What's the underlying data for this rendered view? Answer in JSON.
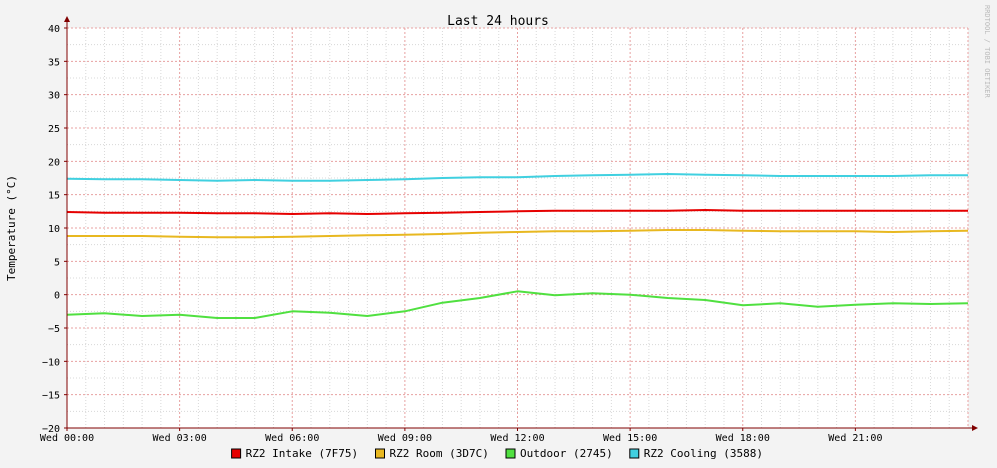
{
  "watermark": "RRDTOOL / TOBI OETIKER",
  "colors": {
    "background": "#f3f3f3",
    "plot_background": "#ffffff",
    "grid_major": "#e8a0a0",
    "grid_minor": "#d8d8d8",
    "axis": "#800000"
  },
  "chart_data": {
    "type": "line",
    "title": "Last 24 hours",
    "ylabel": "Temperature (°C)",
    "xlabel": "",
    "ylim": [
      -20,
      40
    ],
    "xlim": [
      0,
      24
    ],
    "grid": true,
    "legend_position": "bottom",
    "y_ticks": [
      -20,
      -15,
      -10,
      -5,
      0,
      5,
      10,
      15,
      20,
      25,
      30,
      35,
      40
    ],
    "x_ticks": [
      {
        "hour": 0,
        "label": "Wed 00:00"
      },
      {
        "hour": 3,
        "label": "Wed 03:00"
      },
      {
        "hour": 6,
        "label": "Wed 06:00"
      },
      {
        "hour": 9,
        "label": "Wed 09:00"
      },
      {
        "hour": 12,
        "label": "Wed 12:00"
      },
      {
        "hour": 15,
        "label": "Wed 15:00"
      },
      {
        "hour": 18,
        "label": "Wed 18:00"
      },
      {
        "hour": 21,
        "label": "Wed 21:00"
      }
    ],
    "x_hours": [
      0,
      1,
      2,
      3,
      4,
      5,
      6,
      7,
      8,
      9,
      10,
      11,
      12,
      13,
      14,
      15,
      16,
      17,
      18,
      19,
      20,
      21,
      22,
      23,
      24
    ],
    "series": [
      {
        "name": "RZ2 Intake (7F75)",
        "color": "#e60000",
        "values": [
          12.4,
          12.3,
          12.3,
          12.3,
          12.2,
          12.2,
          12.1,
          12.2,
          12.1,
          12.2,
          12.3,
          12.4,
          12.5,
          12.6,
          12.6,
          12.6,
          12.6,
          12.7,
          12.6,
          12.6,
          12.6,
          12.6,
          12.6,
          12.6,
          12.6
        ]
      },
      {
        "name": "RZ2 Room (3D7C)",
        "color": "#e8b820",
        "values": [
          8.8,
          8.8,
          8.8,
          8.7,
          8.6,
          8.6,
          8.7,
          8.8,
          8.9,
          9.0,
          9.1,
          9.3,
          9.4,
          9.5,
          9.5,
          9.6,
          9.7,
          9.7,
          9.6,
          9.5,
          9.5,
          9.5,
          9.4,
          9.5,
          9.6
        ]
      },
      {
        "name": "Outdoor (2745)",
        "color": "#50e040",
        "values": [
          -3.0,
          -2.8,
          -3.2,
          -3.0,
          -3.5,
          -3.5,
          -2.5,
          -2.7,
          -3.2,
          -2.5,
          -1.2,
          -0.5,
          0.5,
          -0.1,
          0.2,
          0.0,
          -0.5,
          -0.8,
          -1.6,
          -1.3,
          -1.8,
          -1.5,
          -1.3,
          -1.4,
          -1.3
        ]
      },
      {
        "name": "RZ2 Cooling (3588)",
        "color": "#40d0e0",
        "values": [
          17.4,
          17.3,
          17.3,
          17.2,
          17.1,
          17.2,
          17.1,
          17.1,
          17.2,
          17.3,
          17.5,
          17.6,
          17.6,
          17.8,
          17.9,
          18.0,
          18.1,
          18.0,
          17.9,
          17.8,
          17.8,
          17.8,
          17.8,
          17.9,
          17.9
        ]
      }
    ]
  }
}
